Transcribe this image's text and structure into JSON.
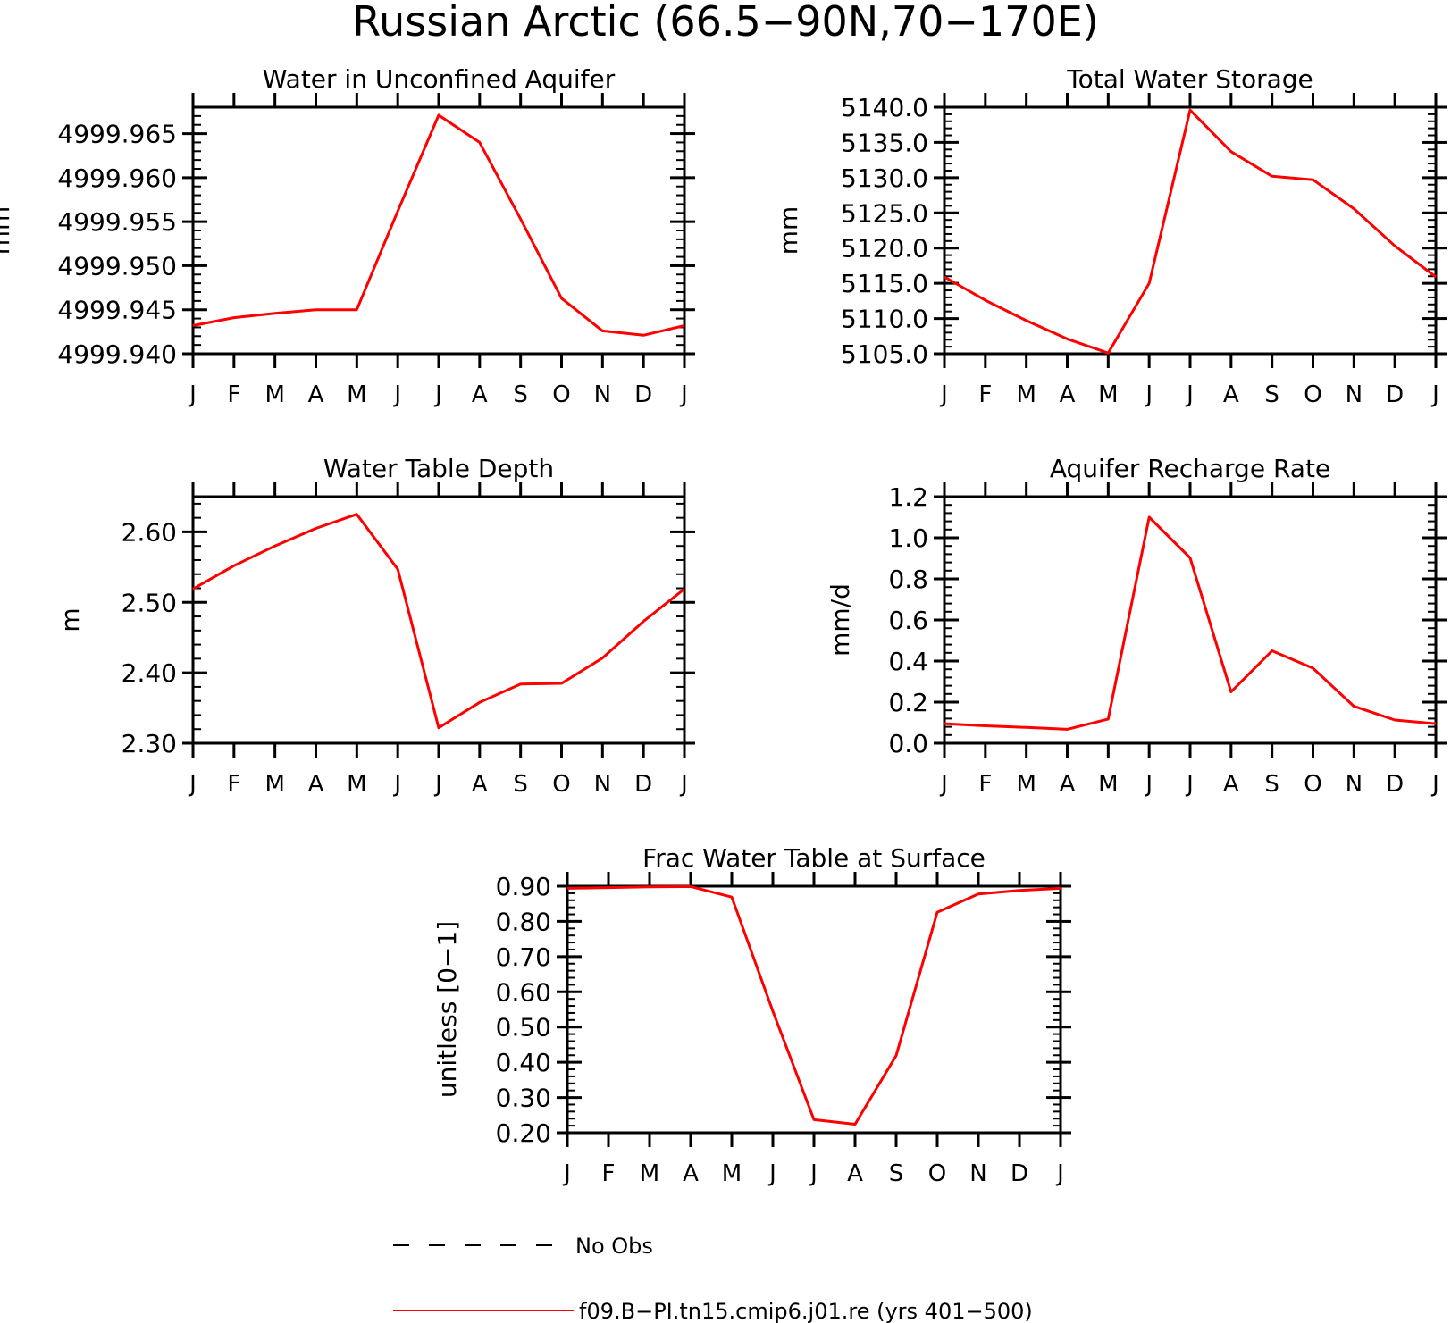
{
  "page": {
    "title": "Russian Arctic (66.5−90N,70−170E)"
  },
  "colors": {
    "series": "#ff0000",
    "axes": "#000000",
    "background": "#ffffff"
  },
  "month_ticks": [
    "J",
    "F",
    "M",
    "A",
    "M",
    "J",
    "J",
    "A",
    "S",
    "O",
    "N",
    "D",
    "J"
  ],
  "chart_data": [
    {
      "type": "line",
      "title": "Water in Unconfined Aquifer",
      "ylabel": "mm",
      "ylim": [
        4999.94,
        4999.968
      ],
      "yticks": [
        4999.94,
        4999.945,
        4999.95,
        4999.955,
        4999.96,
        4999.965
      ],
      "ytick_labels": [
        "4999.940",
        "4999.945",
        "4999.950",
        "4999.955",
        "4999.960",
        "4999.965"
      ],
      "series": [
        {
          "name": "f09.B−PI.tn15.cmip6.j01.re (yrs 401−500)",
          "values": [
            4999.9432,
            4999.9441,
            4999.9446,
            4999.945,
            4999.945,
            4999.9562,
            4999.9671,
            4999.964,
            4999.9553,
            4999.9463,
            4999.9426,
            4999.9421,
            4999.9432
          ]
        }
      ]
    },
    {
      "type": "line",
      "title": "Total Water Storage",
      "ylabel": "mm",
      "ylim": [
        5105.0,
        5140.0
      ],
      "yticks": [
        5105.0,
        5110.0,
        5115.0,
        5120.0,
        5125.0,
        5130.0,
        5135.0,
        5140.0
      ],
      "ytick_labels": [
        "5105.0",
        "5110.0",
        "5115.0",
        "5120.0",
        "5125.0",
        "5130.0",
        "5135.0",
        "5140.0"
      ],
      "series": [
        {
          "name": "f09.B−PI.tn15.cmip6.j01.re (yrs 401−500)",
          "values": [
            5115.9,
            5112.6,
            5109.7,
            5107.1,
            5105.1,
            5115.0,
            5139.6,
            5133.7,
            5130.2,
            5129.7,
            5125.6,
            5120.3,
            5115.9
          ]
        }
      ]
    },
    {
      "type": "line",
      "title": "Water Table Depth",
      "ylabel": "m",
      "ylim": [
        2.3,
        2.65
      ],
      "yticks": [
        2.3,
        2.4,
        2.5,
        2.6
      ],
      "ytick_labels": [
        "2.30",
        "2.40",
        "2.50",
        "2.60"
      ],
      "series": [
        {
          "name": "f09.B−PI.tn15.cmip6.j01.re (yrs 401−500)",
          "values": [
            2.519,
            2.552,
            2.58,
            2.605,
            2.625,
            2.547,
            2.322,
            2.358,
            2.384,
            2.385,
            2.421,
            2.473,
            2.519
          ]
        }
      ]
    },
    {
      "type": "line",
      "title": "Aquifer Recharge Rate",
      "ylabel": "mm/d",
      "ylim": [
        0.0,
        1.2
      ],
      "yticks": [
        0.0,
        0.2,
        0.4,
        0.6,
        0.8,
        1.0,
        1.2
      ],
      "ytick_labels": [
        "0.0",
        "0.2",
        "0.4",
        "0.6",
        "0.8",
        "1.0",
        "1.2"
      ],
      "series": [
        {
          "name": "f09.B−PI.tn15.cmip6.j01.re (yrs 401−500)",
          "values": [
            0.095,
            0.085,
            0.077,
            0.068,
            0.118,
            1.1,
            0.902,
            0.25,
            0.45,
            0.365,
            0.18,
            0.113,
            0.095
          ]
        }
      ]
    },
    {
      "type": "line",
      "title": "Frac Water Table at Surface",
      "ylabel": "unitless [0−1]",
      "ylim": [
        0.2,
        0.9
      ],
      "yticks": [
        0.2,
        0.3,
        0.4,
        0.5,
        0.6,
        0.7,
        0.8,
        0.9
      ],
      "ytick_labels": [
        "0.20",
        "0.30",
        "0.40",
        "0.50",
        "0.60",
        "0.70",
        "0.80",
        "0.90"
      ],
      "series": [
        {
          "name": "f09.B−PI.tn15.cmip6.j01.re (yrs 401−500)",
          "values": [
            0.894,
            0.896,
            0.898,
            0.899,
            0.869,
            0.545,
            0.237,
            0.224,
            0.419,
            0.826,
            0.878,
            0.888,
            0.894
          ]
        }
      ]
    }
  ],
  "legend": {
    "items": [
      {
        "label": "No Obs",
        "style": "dashed",
        "color": "#000000"
      },
      {
        "label": "f09.B−PI.tn15.cmip6.j01.re (yrs 401−500)",
        "style": "solid",
        "color": "#ff0000"
      }
    ]
  }
}
